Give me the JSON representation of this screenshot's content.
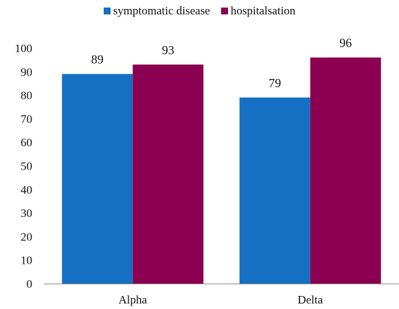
{
  "chart_data": {
    "type": "bar",
    "title": "",
    "xlabel": "",
    "ylabel": "",
    "categories": [
      "Alpha",
      "Delta"
    ],
    "series": [
      {
        "name": "symptomatic disease",
        "values": [
          89,
          79
        ],
        "color": "#1570C4"
      },
      {
        "name": "hospitalsation",
        "values": [
          93,
          96
        ],
        "color": "#8B0050"
      }
    ],
    "ylim": [
      0,
      100
    ],
    "yticks": [
      0,
      10,
      20,
      30,
      40,
      50,
      60,
      70,
      80,
      90,
      100
    ],
    "grid": false,
    "legend_position": "top-center",
    "data_labels": true
  }
}
